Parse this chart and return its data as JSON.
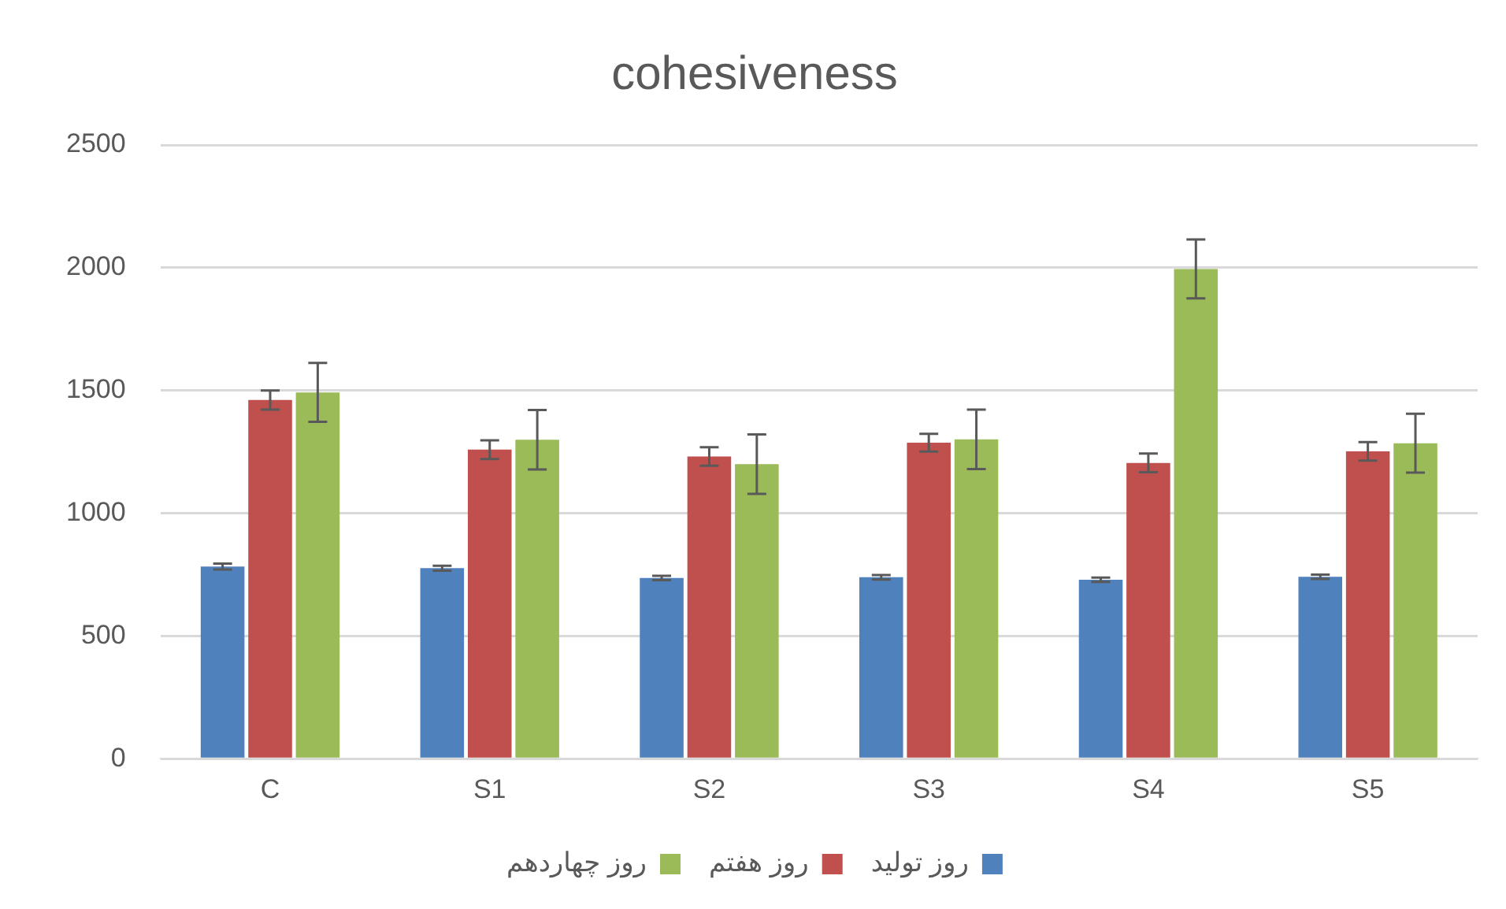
{
  "chart_data": {
    "type": "bar",
    "title": "cohesiveness",
    "categories": [
      "C",
      "S1",
      "S2",
      "S3",
      "S4",
      "S5"
    ],
    "series": [
      {
        "name": "روز تولید",
        "color": "#4f81bd",
        "values": [
          783,
          776,
          736,
          739,
          729,
          741
        ],
        "errors": [
          12,
          10,
          9,
          9,
          9,
          9
        ]
      },
      {
        "name": "روز هفتم",
        "color": "#c0504d",
        "values": [
          1461,
          1259,
          1231,
          1287,
          1205,
          1252
        ],
        "errors": [
          39,
          38,
          38,
          36,
          38,
          38
        ]
      },
      {
        "name": "روز چهاردهم",
        "color": "#9bbb59",
        "values": [
          1492,
          1299,
          1200,
          1301,
          1995,
          1285
        ],
        "errors": [
          120,
          121,
          121,
          121,
          120,
          120
        ]
      }
    ],
    "ylim": [
      0,
      2500
    ],
    "yticks": [
      0,
      500,
      1000,
      1500,
      2000,
      2500
    ],
    "grid": "y",
    "legend": "bottom"
  }
}
